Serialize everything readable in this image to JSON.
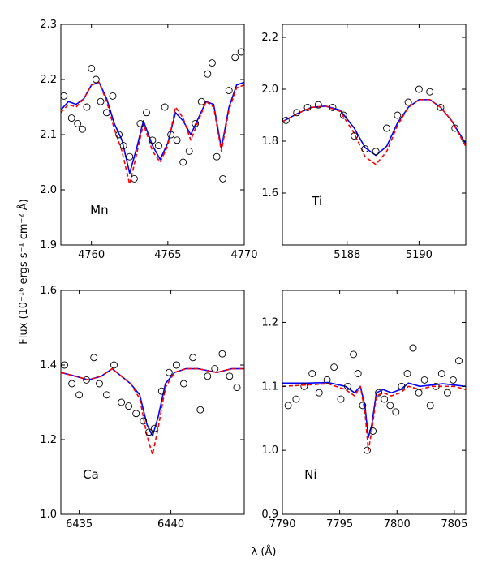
{
  "figure": {
    "ylabel": "Flux (10⁻¹⁶ ergs s⁻¹ cm⁻² Å)",
    "xlabel": "λ (Å)"
  },
  "colors": {
    "model_solid": "#0000ff",
    "model_dashed": "#ff0000",
    "observed": "#000000"
  },
  "chart_data": [
    {
      "type": "line",
      "title": "",
      "label": "Mn",
      "xlim": [
        4758,
        4770
      ],
      "ylim": [
        1.9,
        2.3
      ],
      "xticks": [
        4760,
        4765,
        4770
      ],
      "yticks": [
        1.9,
        2.0,
        2.1,
        2.2,
        2.3
      ],
      "ytick_labels": [
        "1.9",
        "2.0",
        "2.1",
        "2.2",
        "2.3"
      ],
      "series": [
        {
          "name": "model (solid)",
          "style": "solid",
          "x": [
            4758,
            4758.5,
            4759,
            4759.5,
            4760,
            4760.5,
            4761,
            4761.5,
            4762,
            4762.5,
            4763,
            4763.4,
            4764,
            4764.5,
            4765,
            4765.5,
            4766,
            4766.5,
            4767,
            4767.5,
            4768,
            4768.5,
            4769,
            4769.5,
            4770
          ],
          "y": [
            2.145,
            2.16,
            2.155,
            2.165,
            2.19,
            2.195,
            2.165,
            2.12,
            2.09,
            2.03,
            2.08,
            2.125,
            2.08,
            2.055,
            2.085,
            2.14,
            2.125,
            2.1,
            2.13,
            2.16,
            2.155,
            2.075,
            2.15,
            2.19,
            2.195
          ]
        },
        {
          "name": "model (dashed)",
          "style": "dashed",
          "x": [
            4758,
            4758.5,
            4759,
            4759.5,
            4760,
            4760.5,
            4761,
            4761.5,
            4762,
            4762.5,
            4763,
            4763.4,
            4764,
            4764.5,
            4765,
            4765.5,
            4766,
            4766.5,
            4767,
            4767.5,
            4768,
            4768.5,
            4769,
            4769.5,
            4770
          ],
          "y": [
            2.14,
            2.155,
            2.15,
            2.165,
            2.19,
            2.195,
            2.16,
            2.11,
            2.07,
            2.01,
            2.07,
            2.12,
            2.07,
            2.05,
            2.08,
            2.15,
            2.13,
            2.09,
            2.125,
            2.16,
            2.15,
            2.07,
            2.145,
            2.185,
            2.19
          ]
        },
        {
          "name": "observed",
          "style": "markers",
          "x": [
            4758.2,
            4758.7,
            4759.1,
            4759.4,
            4759.7,
            4760.0,
            4760.3,
            4760.6,
            4761.0,
            4761.4,
            4761.8,
            4762.1,
            4762.5,
            4762.8,
            4763.2,
            4763.6,
            4764.0,
            4764.4,
            4764.8,
            4765.2,
            4765.6,
            4766.0,
            4766.4,
            4766.8,
            4767.2,
            4767.6,
            4767.9,
            4768.2,
            4768.6,
            4769.0,
            4769.4,
            4769.8
          ],
          "y": [
            2.17,
            2.13,
            2.12,
            2.11,
            2.15,
            2.22,
            2.2,
            2.16,
            2.14,
            2.17,
            2.1,
            2.08,
            2.06,
            2.02,
            2.12,
            2.14,
            2.09,
            2.08,
            2.15,
            2.1,
            2.09,
            2.05,
            2.07,
            2.12,
            2.16,
            2.21,
            2.23,
            2.06,
            2.02,
            2.18,
            2.24,
            2.25
          ]
        }
      ]
    },
    {
      "type": "line",
      "title": "",
      "label": "Ti",
      "xlim": [
        5186.2,
        5191.3
      ],
      "ylim": [
        1.4,
        2.25
      ],
      "xticks": [
        5188,
        5190
      ],
      "yticks": [
        1.6,
        1.8,
        2.0,
        2.2
      ],
      "ytick_labels": [
        "1.6",
        "1.8",
        "2.0",
        "2.2"
      ],
      "series": [
        {
          "name": "model (solid)",
          "style": "solid",
          "x": [
            5186.2,
            5186.6,
            5187.0,
            5187.4,
            5187.8,
            5188.2,
            5188.5,
            5188.8,
            5189.1,
            5189.4,
            5189.7,
            5190.0,
            5190.3,
            5190.6,
            5190.9,
            5191.3
          ],
          "y": [
            1.875,
            1.905,
            1.93,
            1.935,
            1.92,
            1.85,
            1.775,
            1.745,
            1.78,
            1.87,
            1.93,
            1.96,
            1.96,
            1.93,
            1.88,
            1.79
          ]
        },
        {
          "name": "model (dashed)",
          "style": "dashed",
          "x": [
            5186.2,
            5186.6,
            5187.0,
            5187.4,
            5187.8,
            5188.2,
            5188.5,
            5188.8,
            5189.1,
            5189.4,
            5189.7,
            5190.0,
            5190.3,
            5190.6,
            5190.9,
            5191.3
          ],
          "y": [
            1.875,
            1.905,
            1.93,
            1.935,
            1.915,
            1.83,
            1.74,
            1.71,
            1.76,
            1.86,
            1.93,
            1.96,
            1.96,
            1.93,
            1.88,
            1.78
          ]
        },
        {
          "name": "observed",
          "style": "markers",
          "x": [
            5186.3,
            5186.6,
            5186.9,
            5187.2,
            5187.6,
            5187.9,
            5188.2,
            5188.5,
            5188.8,
            5189.1,
            5189.4,
            5189.7,
            5190.0,
            5190.3,
            5190.6,
            5191.0
          ],
          "y": [
            1.88,
            1.91,
            1.93,
            1.94,
            1.93,
            1.9,
            1.82,
            1.77,
            1.76,
            1.85,
            1.9,
            1.95,
            2.0,
            1.99,
            1.93,
            1.85
          ]
        }
      ]
    },
    {
      "type": "line",
      "title": "",
      "label": "Ca",
      "xlim": [
        6434,
        6444
      ],
      "ylim": [
        1.0,
        1.6
      ],
      "xticks": [
        6435,
        6440
      ],
      "yticks": [
        1.0,
        1.2,
        1.4,
        1.6
      ],
      "ytick_labels": [
        "1.0",
        "1.2",
        "1.4",
        "1.6"
      ],
      "series": [
        {
          "name": "model (solid)",
          "style": "solid",
          "x": [
            6434,
            6434.8,
            6435.5,
            6436.2,
            6436.8,
            6437.3,
            6437.8,
            6438.3,
            6438.7,
            6439.0,
            6439.3,
            6439.7,
            6440.2,
            6440.8,
            6441.5,
            6442.5,
            6443.3,
            6444
          ],
          "y": [
            1.38,
            1.37,
            1.36,
            1.37,
            1.39,
            1.37,
            1.35,
            1.32,
            1.24,
            1.21,
            1.26,
            1.35,
            1.38,
            1.39,
            1.39,
            1.38,
            1.39,
            1.39
          ]
        },
        {
          "name": "model (dashed)",
          "style": "dashed",
          "x": [
            6434,
            6434.8,
            6435.5,
            6436.2,
            6436.8,
            6437.3,
            6437.8,
            6438.3,
            6438.7,
            6439.0,
            6439.3,
            6439.7,
            6440.2,
            6440.8,
            6441.5,
            6442.5,
            6443.3,
            6444
          ],
          "y": [
            1.38,
            1.37,
            1.36,
            1.37,
            1.39,
            1.37,
            1.35,
            1.31,
            1.21,
            1.16,
            1.23,
            1.34,
            1.38,
            1.39,
            1.39,
            1.38,
            1.39,
            1.39
          ]
        },
        {
          "name": "observed",
          "style": "markers",
          "x": [
            6434.2,
            6434.6,
            6435.0,
            6435.4,
            6435.8,
            6436.1,
            6436.5,
            6436.9,
            6437.3,
            6437.7,
            6438.1,
            6438.5,
            6438.8,
            6439.1,
            6439.5,
            6439.9,
            6440.3,
            6440.7,
            6441.2,
            6441.6,
            6442.0,
            6442.4,
            6442.8,
            6443.2,
            6443.6
          ],
          "y": [
            1.4,
            1.35,
            1.32,
            1.36,
            1.42,
            1.35,
            1.32,
            1.4,
            1.3,
            1.29,
            1.27,
            1.25,
            1.22,
            1.23,
            1.33,
            1.38,
            1.4,
            1.35,
            1.42,
            1.28,
            1.37,
            1.39,
            1.43,
            1.37,
            1.34
          ]
        }
      ]
    },
    {
      "type": "line",
      "title": "",
      "label": "Ni",
      "xlim": [
        7790,
        7806
      ],
      "ylim": [
        0.9,
        1.25
      ],
      "xticks": [
        7790,
        7795,
        7800,
        7805
      ],
      "yticks": [
        0.9,
        1.0,
        1.1,
        1.2
      ],
      "ytick_labels": [
        "0.9",
        "1.0",
        "1.1",
        "1.2"
      ],
      "series": [
        {
          "name": "model (solid)",
          "style": "solid",
          "x": [
            7790,
            7792,
            7794,
            7795.5,
            7796.3,
            7796.8,
            7797.2,
            7797.5,
            7797.8,
            7798.2,
            7798.8,
            7799.5,
            7800.3,
            7801,
            7802,
            7803,
            7804,
            7805,
            7806
          ],
          "y": [
            1.105,
            1.105,
            1.106,
            1.1,
            1.09,
            1.1,
            1.07,
            1.02,
            1.04,
            1.09,
            1.095,
            1.09,
            1.095,
            1.105,
            1.1,
            1.102,
            1.104,
            1.102,
            1.1
          ]
        },
        {
          "name": "model (dashed)",
          "style": "dashed",
          "x": [
            7790,
            7792,
            7794,
            7795.5,
            7796.3,
            7796.8,
            7797.2,
            7797.5,
            7797.8,
            7798.2,
            7798.8,
            7799.5,
            7800.3,
            7801,
            7802,
            7803,
            7804,
            7805,
            7806
          ],
          "y": [
            1.1,
            1.102,
            1.104,
            1.095,
            1.085,
            1.1,
            1.06,
            1.0,
            1.03,
            1.085,
            1.09,
            1.085,
            1.09,
            1.1,
            1.095,
            1.1,
            1.1,
            1.1,
            1.095
          ]
        },
        {
          "name": "observed",
          "style": "markers",
          "x": [
            7790.5,
            7791.2,
            7791.9,
            7792.6,
            7793.2,
            7793.9,
            7794.5,
            7795.1,
            7795.7,
            7796.2,
            7796.6,
            7797.0,
            7797.4,
            7797.9,
            7798.4,
            7798.9,
            7799.4,
            7799.9,
            7800.4,
            7800.9,
            7801.4,
            7801.9,
            7802.4,
            7802.9,
            7803.4,
            7803.9,
            7804.4,
            7804.9,
            7805.4
          ],
          "y": [
            1.07,
            1.08,
            1.1,
            1.12,
            1.09,
            1.11,
            1.13,
            1.08,
            1.1,
            1.15,
            1.12,
            1.07,
            1.0,
            1.03,
            1.09,
            1.08,
            1.07,
            1.06,
            1.1,
            1.12,
            1.16,
            1.09,
            1.11,
            1.07,
            1.1,
            1.12,
            1.09,
            1.11,
            1.14
          ]
        }
      ]
    }
  ]
}
